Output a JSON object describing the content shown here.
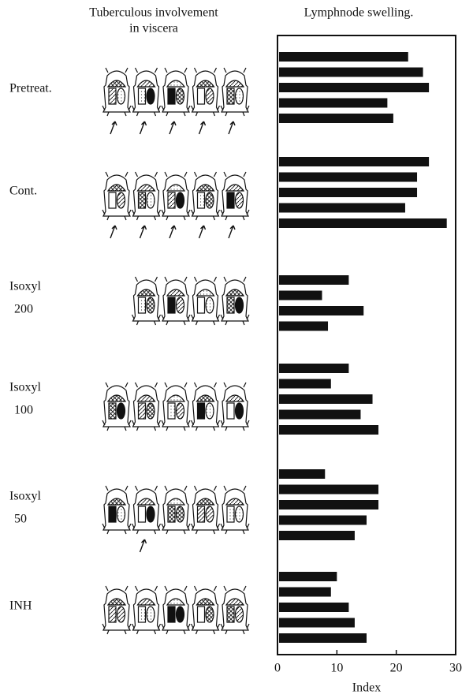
{
  "chart_data": {
    "type": "bar",
    "orientation": "horizontal",
    "left_title": [
      "Tuberculous involvement",
      "in viscera"
    ],
    "right_title": "Lymphnode swelling.",
    "xlabel": "Index",
    "xlim": [
      0,
      30
    ],
    "xticks": [
      0,
      10,
      20,
      30
    ],
    "color": "#111111",
    "groups": [
      {
        "name": [
          "Pretreat."
        ],
        "values": [
          22,
          24.5,
          25.5,
          18.5,
          19.5
        ]
      },
      {
        "name": [
          "Cont."
        ],
        "values": [
          25.5,
          23.5,
          23.5,
          21.5,
          28.5
        ]
      },
      {
        "name": [
          "Isoxyl",
          "200"
        ],
        "values": [
          12,
          7.5,
          14.5,
          8.5
        ]
      },
      {
        "name": [
          "Isoxyl",
          "100"
        ],
        "values": [
          12,
          9,
          16,
          14,
          17
        ]
      },
      {
        "name": [
          "Isoxyl",
          "50"
        ],
        "values": [
          8,
          17,
          17,
          15,
          13
        ]
      },
      {
        "name": [
          "INH"
        ],
        "values": [
          10,
          9,
          12,
          13,
          15
        ]
      }
    ]
  }
}
